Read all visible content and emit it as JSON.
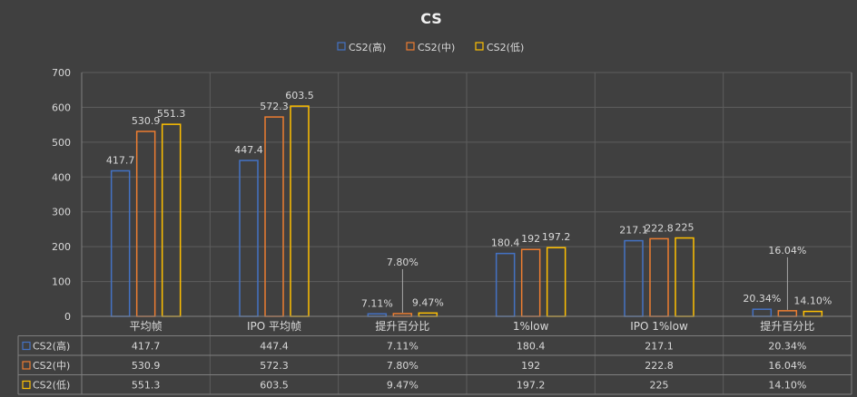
{
  "chart_data": {
    "type": "bar",
    "title": "CS",
    "categories": [
      "平均帧",
      "IPO 平均帧",
      "提升百分比",
      "1%low",
      "IPO 1%low",
      "提升百分比"
    ],
    "series": [
      {
        "name": "CS2(高)",
        "color": "#4472C4",
        "values": [
          417.7,
          447.4,
          7.11,
          180.4,
          217.1,
          20.34
        ],
        "labels": [
          "417.7",
          "447.4",
          "7.11%",
          "180.4",
          "217.1",
          "20.34%"
        ]
      },
      {
        "name": "CS2(中)",
        "color": "#ED7D31",
        "values": [
          530.9,
          572.3,
          7.8,
          192,
          222.8,
          16.04
        ],
        "labels": [
          "530.9",
          "572.3",
          "7.80%",
          "192",
          "222.8",
          "16.04%"
        ]
      },
      {
        "name": "CS2(低)",
        "color": "#FFC000",
        "values": [
          551.3,
          603.5,
          9.47,
          197.2,
          225,
          14.1
        ],
        "labels": [
          "551.3",
          "603.5",
          "9.47%",
          "197.2",
          "225",
          "14.10%"
        ]
      }
    ],
    "ylim": [
      0,
      700
    ],
    "yticks": [
      0,
      100,
      200,
      300,
      400,
      500,
      600,
      700
    ],
    "grid": true,
    "legend": "top",
    "data_table": true
  }
}
